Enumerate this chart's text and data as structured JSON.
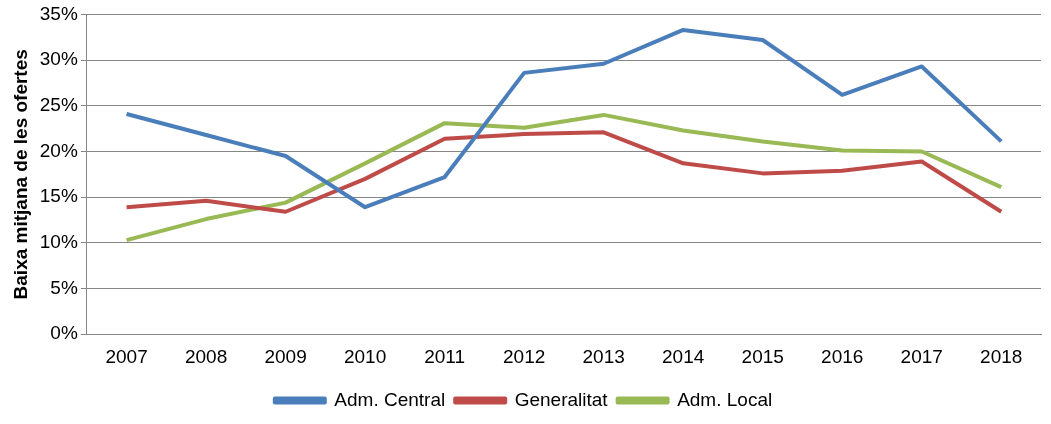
{
  "chart_data": {
    "type": "line",
    "ylabel": "Baixa mitjana de les ofertes",
    "categories": [
      "2007",
      "2008",
      "2009",
      "2010",
      "2011",
      "2012",
      "2013",
      "2014",
      "2015",
      "2016",
      "2017",
      "2018"
    ],
    "series": [
      {
        "name": "Adm. Central",
        "color": "#4a7ebb",
        "values": [
          24.1,
          21.8,
          19.5,
          13.9,
          17.2,
          28.6,
          29.6,
          33.3,
          32.2,
          26.2,
          29.3,
          21.1
        ]
      },
      {
        "name": "Generalitat",
        "color": "#be4b48",
        "values": [
          13.9,
          14.6,
          13.4,
          17.0,
          21.4,
          21.9,
          22.1,
          18.7,
          17.6,
          17.9,
          18.9,
          13.4
        ]
      },
      {
        "name": "Adm. Local",
        "color": "#98b954",
        "values": [
          10.3,
          12.6,
          14.4,
          18.7,
          23.1,
          22.6,
          24.0,
          22.3,
          21.1,
          20.1,
          20.0,
          16.1
        ]
      }
    ],
    "ylim": [
      0,
      35
    ],
    "yticks": [
      {
        "value": 0,
        "label": "0%"
      },
      {
        "value": 5,
        "label": "5%"
      },
      {
        "value": 10,
        "label": "10%"
      },
      {
        "value": 15,
        "label": "15%"
      },
      {
        "value": 20,
        "label": "20%"
      },
      {
        "value": 25,
        "label": "25%"
      },
      {
        "value": 30,
        "label": "30%"
      },
      {
        "value": 35,
        "label": "35%"
      }
    ],
    "grid": "y",
    "legend": "bottom",
    "marker": "none",
    "line_style": "solid"
  }
}
